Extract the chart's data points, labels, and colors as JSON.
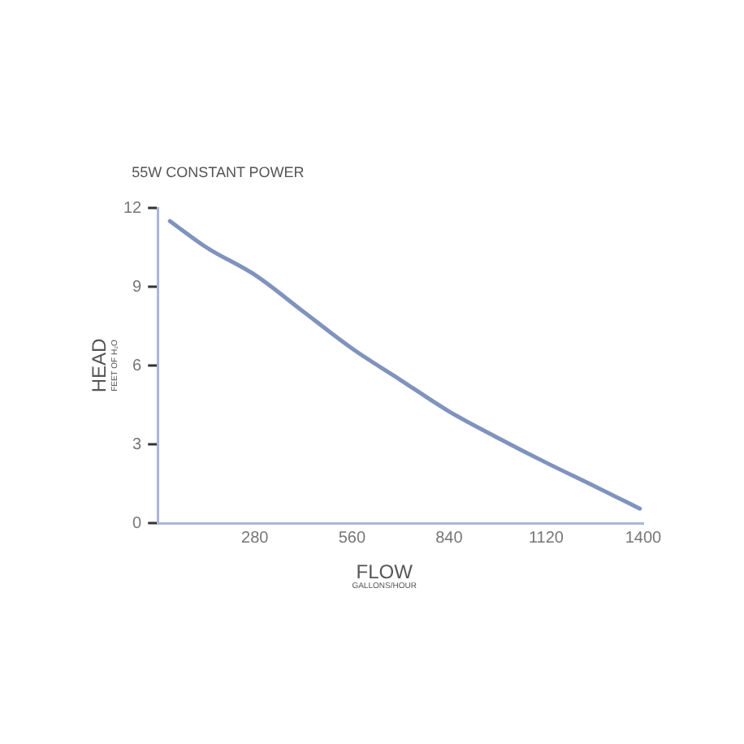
{
  "chart_data": {
    "type": "line",
    "title": "55W CONSTANT POWER",
    "xlabel": "FLOW\nGALLONS/HOUR",
    "ylabel": "HEAD\nFEET OF H₂O",
    "x": [
      35,
      140,
      280,
      420,
      560,
      700,
      840,
      980,
      1120,
      1260,
      1390
    ],
    "series": [
      {
        "color": "#7f93bd",
        "values": [
          11.5,
          10.5,
          9.45,
          8.05,
          6.65,
          5.45,
          4.25,
          3.25,
          2.3,
          1.4,
          0.55
        ]
      }
    ],
    "xlim": [
      0,
      1400
    ],
    "xticks": [
      280,
      560,
      840,
      1120,
      1400
    ],
    "ylim": [
      0,
      12
    ],
    "yticks": [
      0,
      3,
      6,
      9,
      12
    ],
    "grid": false,
    "legend": false,
    "marker": "none",
    "line_style": "solid"
  }
}
